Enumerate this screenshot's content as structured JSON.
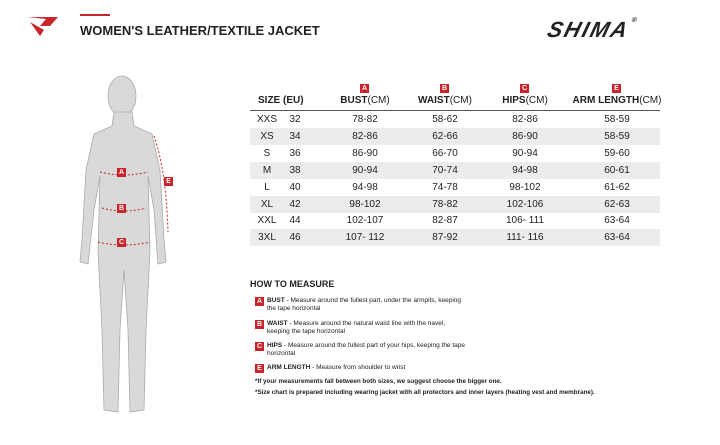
{
  "header": {
    "title": "WOMEN'S LEATHER/TEXTILE JACKET",
    "brand": "SHIMA",
    "brand_mark": "®"
  },
  "figure": {
    "labels": [
      "A",
      "B",
      "C",
      "E"
    ]
  },
  "table": {
    "size_header": "SIZE (EU)",
    "columns": [
      {
        "letter": "A",
        "name": "BUST",
        "unit": "(CM)"
      },
      {
        "letter": "B",
        "name": "WAIST",
        "unit": "(CM)"
      },
      {
        "letter": "C",
        "name": "HIPS",
        "unit": "(CM)"
      },
      {
        "letter": "E",
        "name": "ARM LENGTH",
        "unit": "(CM)"
      }
    ],
    "rows": [
      [
        "XXS",
        "32",
        "78-82",
        "58-62",
        "82-86",
        "58-59"
      ],
      [
        "XS",
        "34",
        "82-86",
        "62-66",
        "86-90",
        "58-59"
      ],
      [
        "S",
        "36",
        "86-90",
        "66-70",
        "90-94",
        "59-60"
      ],
      [
        "M",
        "38",
        "90-94",
        "70-74",
        "94-98",
        "60-61"
      ],
      [
        "L",
        "40",
        "94-98",
        "74-78",
        "98-102",
        "61-62"
      ],
      [
        "XL",
        "42",
        "98-102",
        "78-82",
        "102-106",
        "62-63"
      ],
      [
        "XXL",
        "44",
        "102-107",
        "82-87",
        "106- 111",
        "63-64"
      ],
      [
        "3XL",
        "46",
        "107- 112",
        "87-92",
        "111- 116",
        "63-64"
      ]
    ]
  },
  "how_to_measure": {
    "title": "HOW TO MEASURE",
    "items": [
      {
        "letter": "A",
        "name": "BUST",
        "text": " - Measure around the fullest part, under the armpits, keeping the tape horizontal"
      },
      {
        "letter": "B",
        "name": "WAIST",
        "text": " - Measure around the natural waist line with the navel, keeping the tape horizontal"
      },
      {
        "letter": "C",
        "name": "HIPS",
        "text": " - Measure around the fullest part of your hips, keeping the tape horizontal"
      },
      {
        "letter": "E",
        "name": "ARM LENGTH",
        "text": " - Measure from shoulder to wrist"
      }
    ],
    "notes": [
      "*If your measurements fall between both sizes, we suggest choose the bigger one.",
      "*Size chart is prepared including wearing jacket with all protectors and inner layers (heating vest and membrane)."
    ]
  }
}
